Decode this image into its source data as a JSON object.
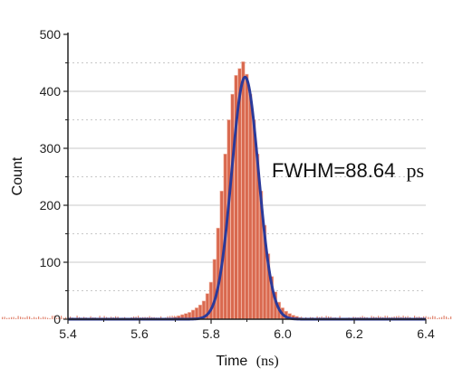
{
  "chart_data": {
    "type": "bar",
    "description_type": "histogram with gaussian fit",
    "xlabel_text": "Time",
    "xlabel_unit": "(ns)",
    "ylabel": "Count",
    "xlim": [
      5.4,
      6.4
    ],
    "ylim": [
      0,
      500
    ],
    "x_ticks": [
      "5.4",
      "5.6",
      "5.8",
      "6.0",
      "6.2",
      "6.4"
    ],
    "y_ticks": [
      "0",
      "100",
      "200",
      "300",
      "400",
      "500"
    ],
    "grid": true,
    "annotation_text": "FWHM=88.64",
    "annotation_unit": "ps",
    "fit": {
      "center": 5.895,
      "peak": 425,
      "fwhm_ns": 0.08864
    },
    "histogram": {
      "x": [
        5.7,
        5.71,
        5.72,
        5.73,
        5.74,
        5.75,
        5.76,
        5.77,
        5.78,
        5.79,
        5.8,
        5.81,
        5.82,
        5.83,
        5.84,
        5.85,
        5.86,
        5.87,
        5.88,
        5.89,
        5.9,
        5.91,
        5.92,
        5.93,
        5.94,
        5.95,
        5.96,
        5.97,
        5.98,
        5.99,
        6.0,
        6.01,
        6.02,
        6.03,
        6.04,
        6.05
      ],
      "values": [
        4,
        6,
        8,
        10,
        12,
        16,
        20,
        25,
        32,
        45,
        65,
        105,
        160,
        225,
        290,
        350,
        395,
        428,
        440,
        452,
        430,
        395,
        350,
        290,
        225,
        165,
        115,
        75,
        48,
        30,
        20,
        14,
        10,
        7,
        5,
        3
      ]
    },
    "colors": {
      "bars": "#d9694f",
      "fit": "#2b3a9a",
      "grid": "#c8c8c8"
    }
  }
}
